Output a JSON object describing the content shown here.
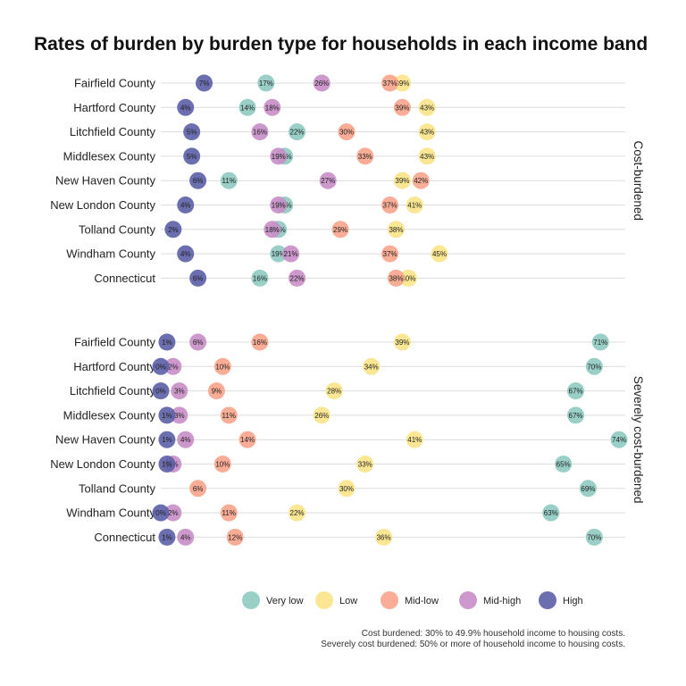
{
  "chart_data": {
    "type": "scatter",
    "title": "Rates of burden by burden type for households in each income band",
    "x_range": [
      0,
      0.75
    ],
    "grid": true,
    "legend_position": "bottom",
    "categories": [
      "Fairfield County",
      "Hartford County",
      "Litchfield County",
      "Middlesex County",
      "New Haven County",
      "New London County",
      "Tolland County",
      "Windham County",
      "Connecticut"
    ],
    "facets": [
      "Cost-burdened",
      "Severely cost-burdened"
    ],
    "series": [
      {
        "name": "Very low",
        "color": "#8ecac1"
      },
      {
        "name": "Low",
        "color": "#fbe487"
      },
      {
        "name": "Mid-low",
        "color": "#f8a48b"
      },
      {
        "name": "Mid-high",
        "color": "#c88ec6"
      },
      {
        "name": "High",
        "color": "#5b5ea6"
      }
    ],
    "panels": [
      {
        "facet": "Cost-burdened",
        "values": {
          "Very low": [
            0.17,
            0.14,
            0.22,
            0.2,
            0.11,
            0.2,
            0.19,
            0.19,
            0.16
          ],
          "Low": [
            0.39,
            0.43,
            0.43,
            0.43,
            0.39,
            0.41,
            0.38,
            0.45,
            0.4
          ],
          "Mid-low": [
            0.37,
            0.39,
            0.3,
            0.33,
            0.42,
            0.37,
            0.29,
            0.37,
            0.38
          ],
          "Mid-high": [
            0.26,
            0.18,
            0.16,
            0.19,
            0.27,
            0.19,
            0.18,
            0.21,
            0.22
          ],
          "High": [
            0.07,
            0.04,
            0.05,
            0.05,
            0.06,
            0.04,
            0.02,
            0.04,
            0.06
          ]
        }
      },
      {
        "facet": "Severely cost-burdened",
        "values": {
          "Very low": [
            0.71,
            0.7,
            0.67,
            0.67,
            0.74,
            0.65,
            0.69,
            0.63,
            0.7
          ],
          "Low": [
            0.39,
            0.34,
            0.28,
            0.26,
            0.41,
            0.33,
            0.3,
            0.22,
            0.36
          ],
          "Mid-low": [
            0.16,
            0.1,
            0.09,
            0.11,
            0.14,
            0.1,
            0.06,
            0.11,
            0.12
          ],
          "Mid-high": [
            0.06,
            0.02,
            0.03,
            0.03,
            0.04,
            0.02,
            null,
            0.02,
            0.04
          ],
          "High": [
            0.01,
            0.0,
            0.0,
            0.01,
            0.01,
            0.01,
            null,
            0.0,
            0.01
          ]
        }
      }
    ],
    "caption": [
      "Cost burdened: 30% to 49.9% household income to housing costs.",
      "Severely cost burdened: 50% or more of household income to housing costs."
    ]
  }
}
